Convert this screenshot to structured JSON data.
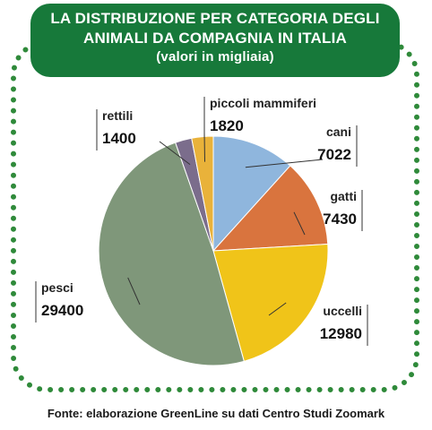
{
  "title_line1": "LA DISTRIBUZIONE PER CATEGORIA DEGLI",
  "title_line2": "ANIMALI DA COMPAGNIA IN ITALIA",
  "subtitle": "(valori in migliaia)",
  "source": "Fonte: elaborazione GreenLine su dati Centro Studi Zoomark",
  "colors": {
    "frame": "#2f8a3a",
    "title_bg": "#17793a"
  },
  "chart_data": {
    "type": "pie",
    "title": "LA DISTRIBUZIONE PER CATEGORIA DEGLI ANIMALI DA COMPAGNIA IN ITALIA",
    "subtitle": "(valori in migliaia)",
    "unit": "migliaia",
    "start": "12 o'clock, clockwise",
    "slices": [
      {
        "label": "cani",
        "value": 7022,
        "display": "7022",
        "color": "#8fb6dd"
      },
      {
        "label": "gatti",
        "value": 7430,
        "display": "7430",
        "color": "#d9743e"
      },
      {
        "label": "uccelli",
        "value": 12980,
        "display": "12980",
        "color": "#f0c419"
      },
      {
        "label": "pesci",
        "value": 29400,
        "display": "29400",
        "color": "#7f977a"
      },
      {
        "label": "rettili",
        "value": 1400,
        "display": "1400",
        "color": "#7b6d8c"
      },
      {
        "label": "piccoli mammiferi",
        "value": 1820,
        "display": "1820",
        "color": "#e9b23a"
      }
    ]
  }
}
